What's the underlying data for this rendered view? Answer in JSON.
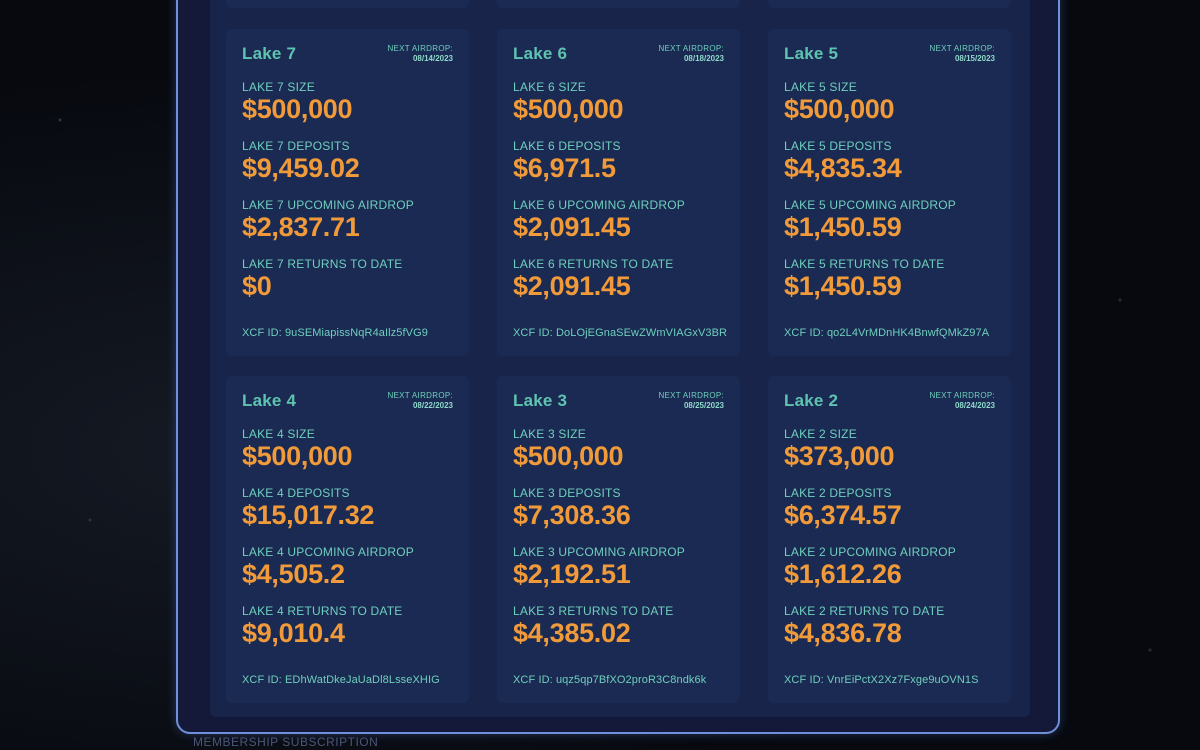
{
  "footer": {
    "label": "MEMBERSHIP SUBSCRIPTION"
  },
  "lakes": [
    {
      "title": "Lake 7",
      "airdrop_label": "NEXT AIRDROP:",
      "airdrop_date": "08/14/2023",
      "size_label": "LAKE 7 SIZE",
      "size_value": "$500,000",
      "deposits_label": "LAKE 7 DEPOSITS",
      "deposits_value": "$9,459.02",
      "upcoming_label": "LAKE 7 UPCOMING AIRDROP",
      "upcoming_value": "$2,837.71",
      "returns_label": "LAKE 7 RETURNS TO DATE",
      "returns_value": "$0",
      "xcf_id": "XCF ID: 9uSEMiapissNqR4aIlz5fVG9"
    },
    {
      "title": "Lake 6",
      "airdrop_label": "NEXT AIRDROP:",
      "airdrop_date": "08/18/2023",
      "size_label": "LAKE 6 SIZE",
      "size_value": "$500,000",
      "deposits_label": "LAKE 6 DEPOSITS",
      "deposits_value": "$6,971.5",
      "upcoming_label": "LAKE 6 UPCOMING AIRDROP",
      "upcoming_value": "$2,091.45",
      "returns_label": "LAKE 6 RETURNS TO DATE",
      "returns_value": "$2,091.45",
      "xcf_id": "XCF ID: DoLOjEGnaSEwZWmVIAGxV3BR"
    },
    {
      "title": "Lake 5",
      "airdrop_label": "NEXT AIRDROP:",
      "airdrop_date": "08/15/2023",
      "size_label": "LAKE 5 SIZE",
      "size_value": "$500,000",
      "deposits_label": "LAKE 5 DEPOSITS",
      "deposits_value": "$4,835.34",
      "upcoming_label": "LAKE 5 UPCOMING AIRDROP",
      "upcoming_value": "$1,450.59",
      "returns_label": "LAKE 5 RETURNS TO DATE",
      "returns_value": "$1,450.59",
      "xcf_id": "XCF ID: qo2L4VrMDnHK4BnwfQMkZ97A"
    },
    {
      "title": "Lake 4",
      "airdrop_label": "NEXT AIRDROP:",
      "airdrop_date": "08/22/2023",
      "size_label": "LAKE 4 SIZE",
      "size_value": "$500,000",
      "deposits_label": "LAKE 4 DEPOSITS",
      "deposits_value": "$15,017.32",
      "upcoming_label": "LAKE 4 UPCOMING AIRDROP",
      "upcoming_value": "$4,505.2",
      "returns_label": "LAKE 4 RETURNS TO DATE",
      "returns_value": "$9,010.4",
      "xcf_id": "XCF ID: EDhWatDkeJaUaDl8LsseXHIG"
    },
    {
      "title": "Lake 3",
      "airdrop_label": "NEXT AIRDROP:",
      "airdrop_date": "08/25/2023",
      "size_label": "LAKE 3 SIZE",
      "size_value": "$500,000",
      "deposits_label": "LAKE 3 DEPOSITS",
      "deposits_value": "$7,308.36",
      "upcoming_label": "LAKE 3 UPCOMING AIRDROP",
      "upcoming_value": "$2,192.51",
      "returns_label": "LAKE 3 RETURNS TO DATE",
      "returns_value": "$4,385.02",
      "xcf_id": "XCF ID: uqz5qp7BfXO2proR3C8ndk6k"
    },
    {
      "title": "Lake 2",
      "airdrop_label": "NEXT AIRDROP:",
      "airdrop_date": "08/24/2023",
      "size_label": "LAKE 2 SIZE",
      "size_value": "$373,000",
      "deposits_label": "LAKE 2 DEPOSITS",
      "deposits_value": "$6,374.57",
      "upcoming_label": "LAKE 2 UPCOMING AIRDROP",
      "upcoming_value": "$1,612.26",
      "returns_label": "LAKE 2 RETURNS TO DATE",
      "returns_value": "$4,836.78",
      "xcf_id": "XCF ID: VnrEiPctX2Xz7Fxge9uOVN1S"
    }
  ]
}
